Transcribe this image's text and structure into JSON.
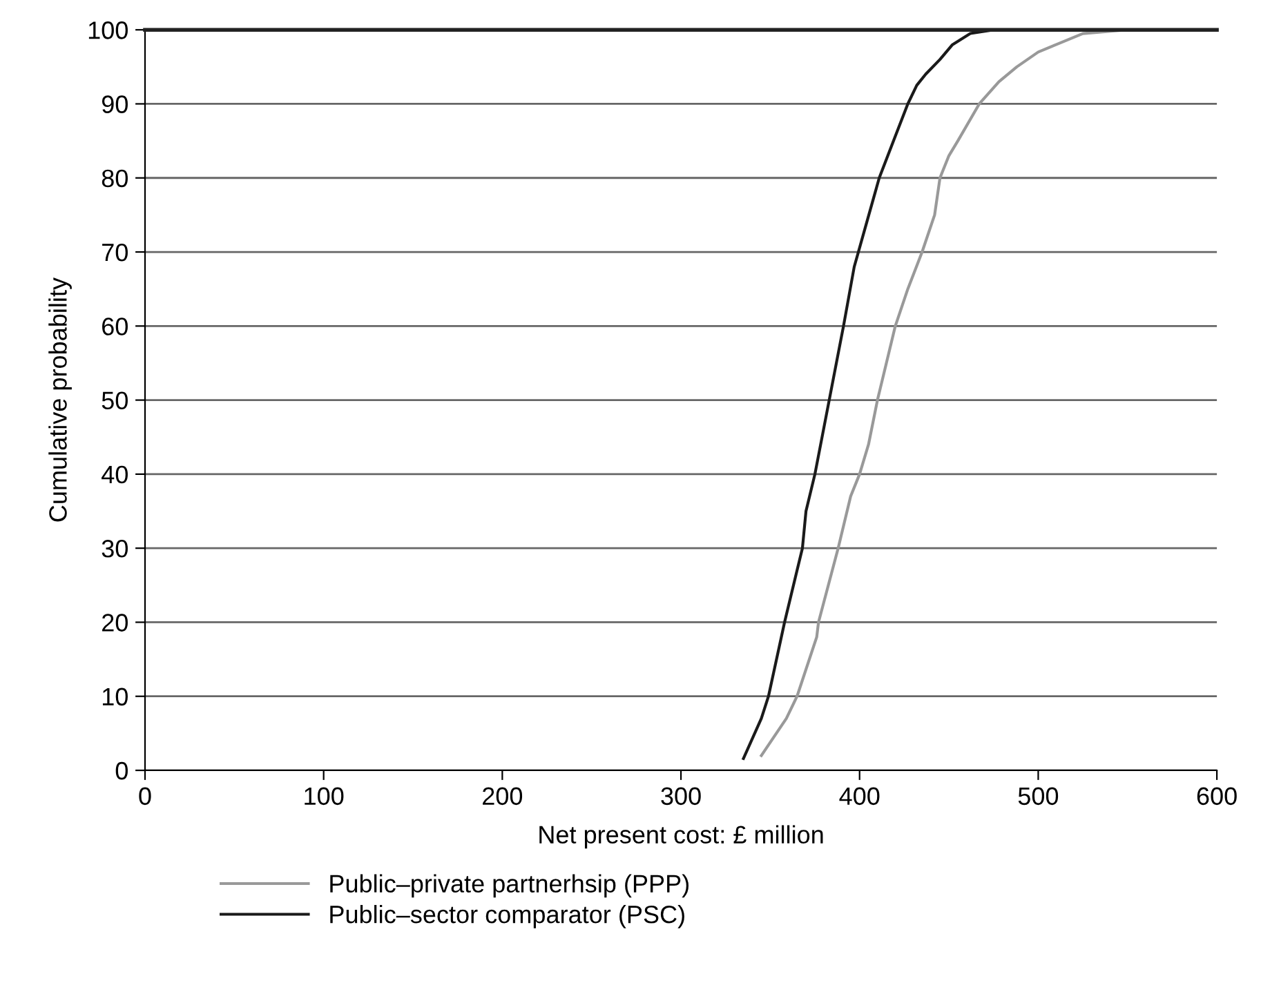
{
  "chart_data": {
    "type": "line",
    "xlabel": "Net present cost: £ million",
    "ylabel": "Cumulative probability",
    "xlim": [
      0,
      600
    ],
    "xticks": [
      0,
      100,
      200,
      300,
      400,
      500,
      600
    ],
    "ylim": [
      0,
      100
    ],
    "yticks": [
      0,
      10,
      20,
      30,
      40,
      50,
      60,
      70,
      80,
      90,
      100
    ],
    "grid": "y",
    "legend": "bottom left",
    "marker": "none",
    "line_style": "solid",
    "series": [
      {
        "name": "Public–private partnerhsip (PPP)",
        "color": "#999999",
        "x": [
          345,
          359,
          365,
          376,
          377,
          388,
          395,
          400,
          405,
          410,
          415,
          420,
          427,
          435,
          442,
          445,
          450,
          455,
          467,
          478,
          488,
          500,
          510,
          525,
          550
        ],
        "values": [
          2,
          7,
          10,
          18,
          20,
          30,
          37,
          40,
          44,
          50,
          55,
          60,
          65,
          70,
          75,
          80,
          83,
          85,
          90,
          93,
          95,
          97,
          98,
          99.5,
          100
        ]
      },
      {
        "name": "Public–sector comparator (PSC)",
        "color": "#1a1a1a",
        "x": [
          335,
          345,
          349,
          358,
          365,
          368,
          370,
          375,
          383,
          391,
          397,
          404,
          411,
          419,
          427,
          432,
          437,
          445,
          452,
          462,
          475
        ],
        "values": [
          1.6,
          7,
          10,
          20,
          27,
          30,
          35,
          40,
          50,
          60,
          68,
          74,
          80,
          85,
          90,
          92.5,
          94,
          96,
          98,
          99.5,
          100
        ]
      }
    ]
  }
}
